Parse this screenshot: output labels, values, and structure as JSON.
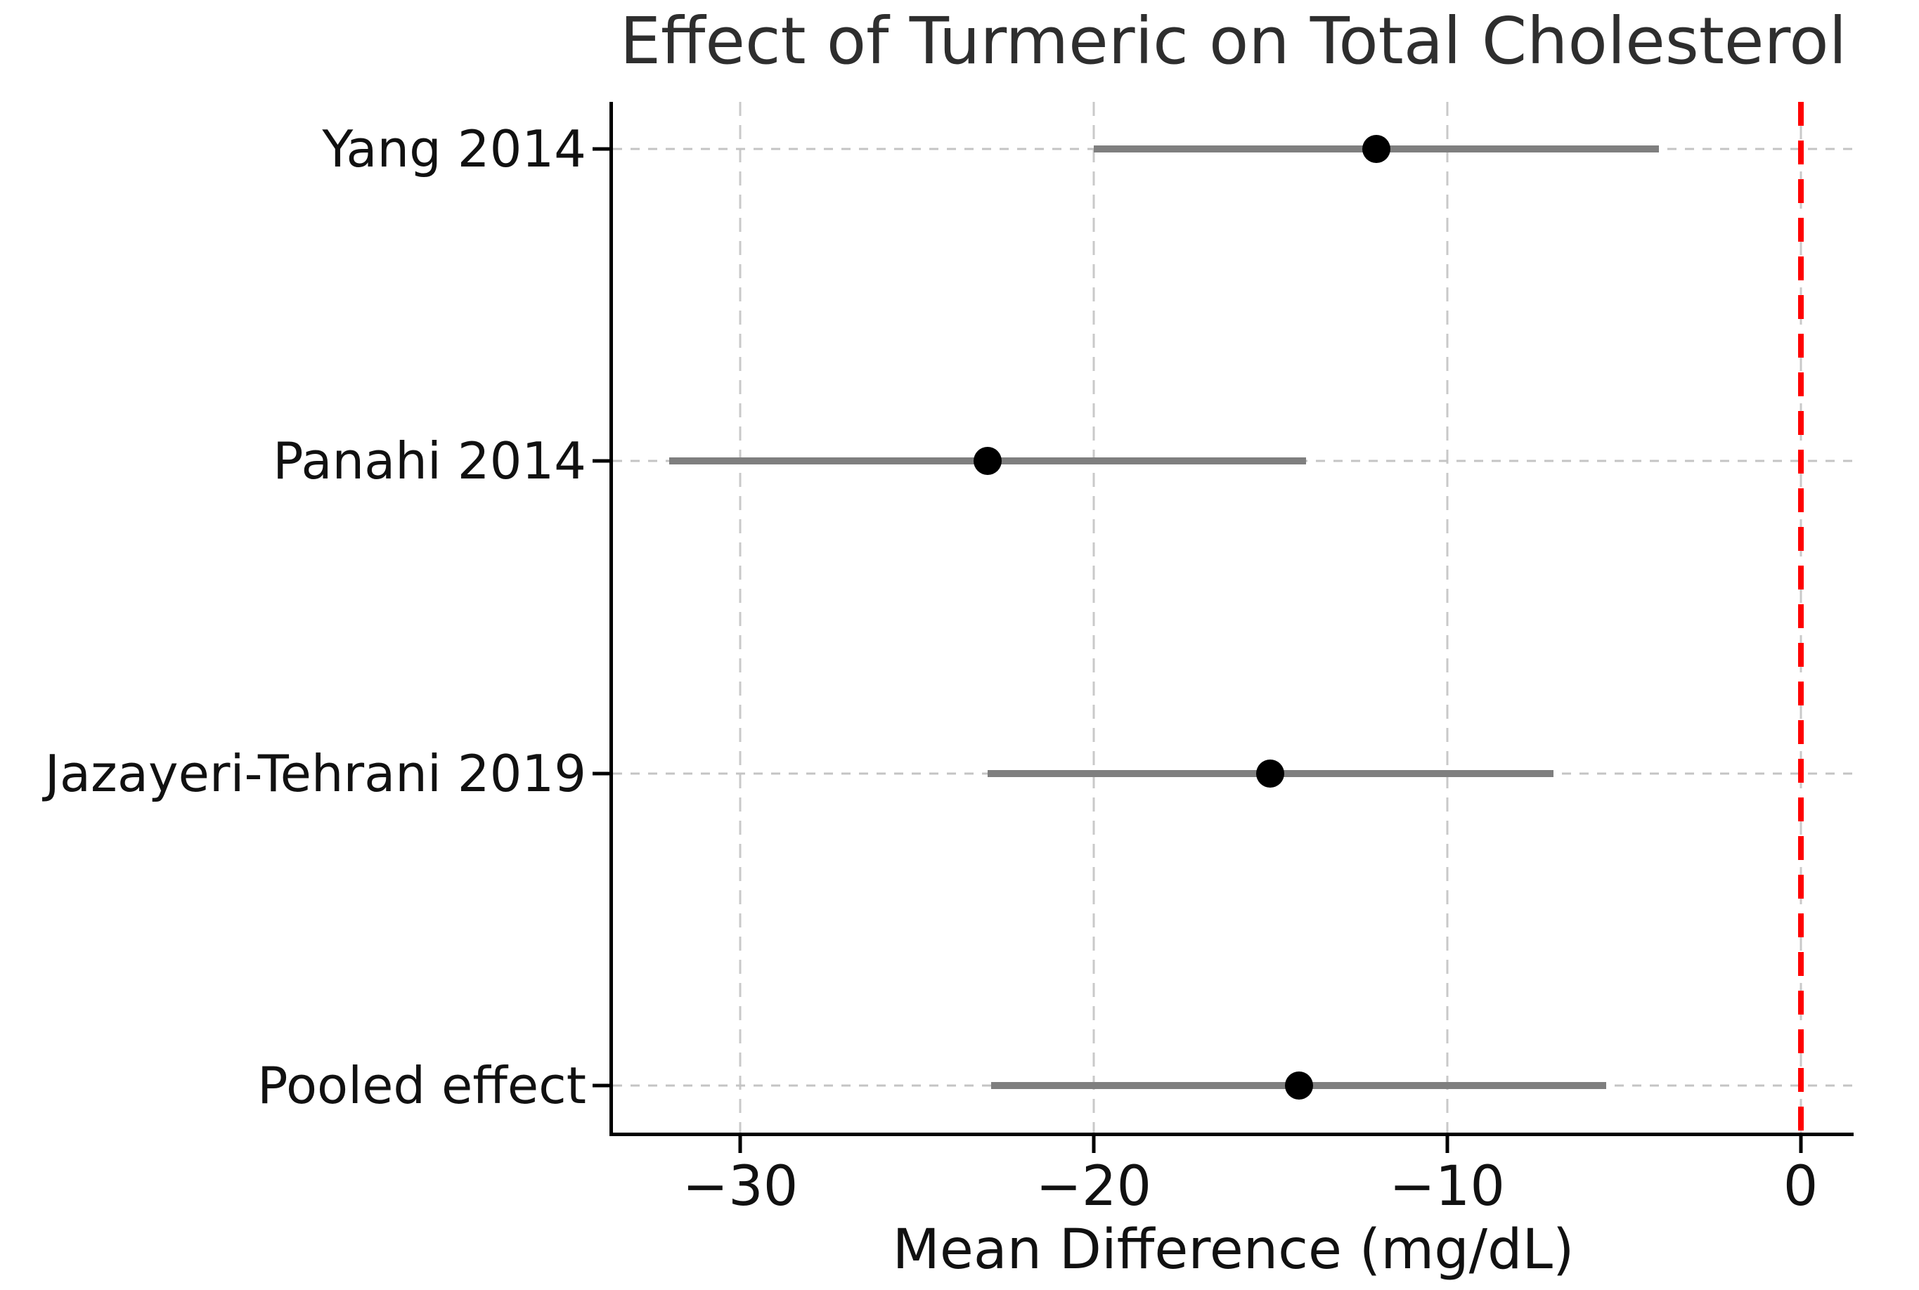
{
  "figure": {
    "title": "Effect of Turmeric on Total Cholesterol",
    "x_axis_label": "Mean Difference (mg/dL)"
  },
  "colors": {
    "ci_line": "#7f7f7f",
    "marker": "#000000",
    "zero_reference_line": "#ff0000",
    "grid": "#c9c9c9",
    "axis_spine": "#000000",
    "text": "#111111",
    "background": "#ffffff"
  },
  "chart_data": {
    "type": "scatter",
    "subtype": "forest-plot",
    "title": "Effect of Turmeric on Total Cholesterol",
    "xlabel": "Mean Difference (mg/dL)",
    "ylabel": "",
    "xlim": [
      -33.6,
      1.5
    ],
    "x_ticks": [
      -30,
      -20,
      -10,
      0
    ],
    "x_tick_labels": [
      "−30",
      "−20",
      "−10",
      "0"
    ],
    "grid": true,
    "grid_style": "dashed",
    "zero_line_x": 0,
    "legend": "none",
    "categories": [
      "Yang 2014",
      "Panahi 2014",
      "Jazayeri-Tehrani 2019",
      "Pooled effect"
    ],
    "studies": [
      {
        "label": "Yang 2014",
        "mean": -12,
        "ci_low": -20,
        "ci_high": -4
      },
      {
        "label": "Panahi 2014",
        "mean": -23,
        "ci_low": -32,
        "ci_high": -14
      },
      {
        "label": "Jazayeri-Tehrani 2019",
        "mean": -15,
        "ci_low": -23,
        "ci_high": -7
      },
      {
        "label": "Pooled effect",
        "mean": -14.2,
        "ci_low": -22.9,
        "ci_high": -5.5
      }
    ]
  }
}
